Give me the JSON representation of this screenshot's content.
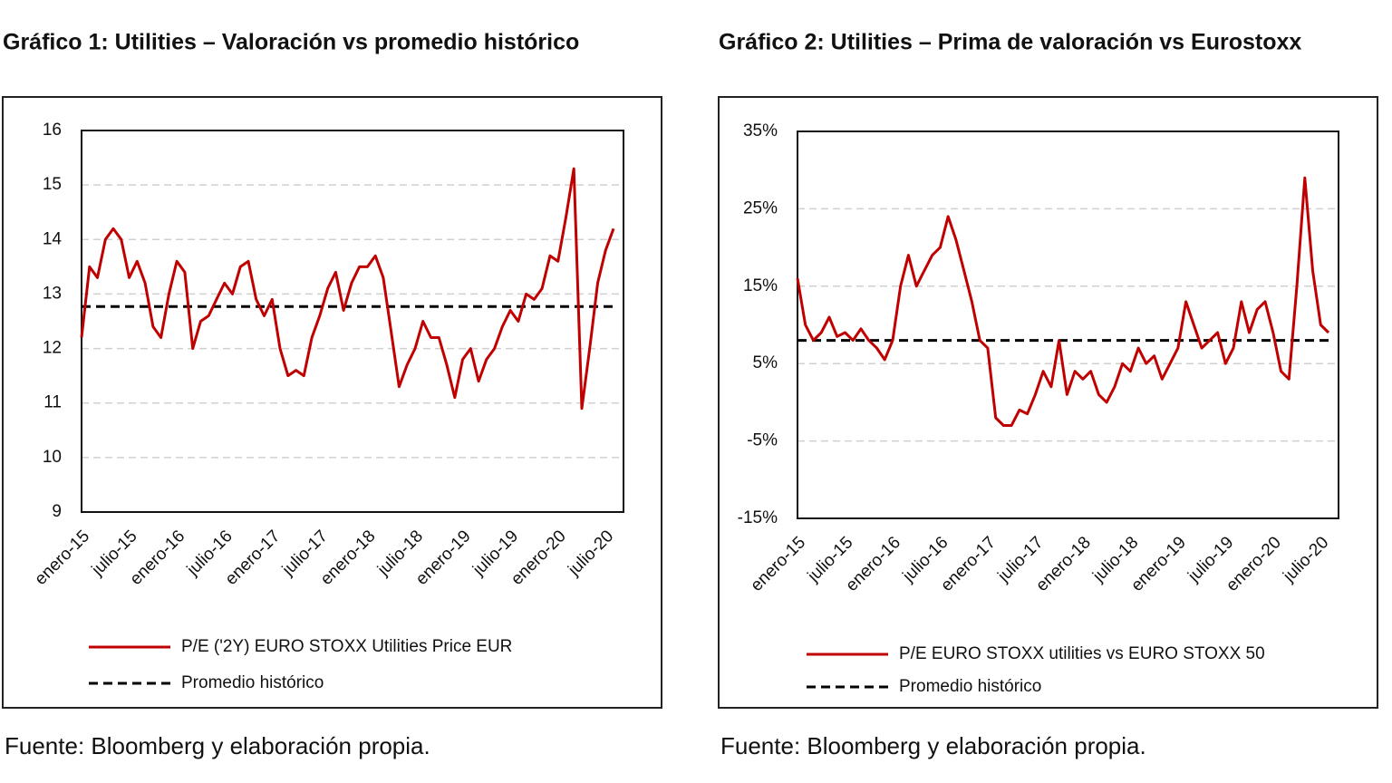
{
  "chart_data": [
    {
      "type": "line",
      "title": "Gráfico 1: Utilities – Valoración vs promedio histórico",
      "source": "Fuente: Bloomberg y elaboración propia.",
      "categories": [
        "enero-15",
        null,
        null,
        null,
        null,
        null,
        "julio-15",
        null,
        null,
        null,
        null,
        null,
        "enero-16",
        null,
        null,
        null,
        null,
        null,
        "julio-16",
        null,
        null,
        null,
        null,
        null,
        "enero-17",
        null,
        null,
        null,
        null,
        null,
        "julio-17",
        null,
        null,
        null,
        null,
        null,
        "enero-18",
        null,
        null,
        null,
        null,
        null,
        "julio-18",
        null,
        null,
        null,
        null,
        null,
        "enero-19",
        null,
        null,
        null,
        null,
        null,
        "julio-19",
        null,
        null,
        null,
        null,
        null,
        "enero-20",
        null,
        null,
        null,
        null,
        null,
        "julio-20",
        null
      ],
      "series": [
        {
          "name": "P/E ('2Y) EURO STOXX Utilities Price EUR",
          "color": "#c00000",
          "values": [
            12.2,
            13.5,
            13.3,
            14.0,
            14.2,
            14.0,
            13.3,
            13.6,
            13.2,
            12.4,
            12.2,
            13.0,
            13.6,
            13.4,
            12.0,
            12.5,
            12.6,
            12.9,
            13.2,
            13.0,
            13.5,
            13.6,
            12.9,
            12.6,
            12.9,
            12.0,
            11.5,
            11.6,
            11.5,
            12.2,
            12.6,
            13.1,
            13.4,
            12.7,
            13.2,
            13.5,
            13.5,
            13.7,
            13.3,
            12.3,
            11.3,
            11.7,
            12.0,
            12.5,
            12.2,
            12.2,
            11.7,
            11.1,
            11.8,
            12.0,
            11.4,
            11.8,
            12.0,
            12.4,
            12.7,
            12.5,
            13.0,
            12.9,
            13.1,
            13.7,
            13.6,
            14.4,
            15.3,
            10.9,
            12.0,
            13.2,
            13.8,
            14.2
          ]
        }
      ],
      "reference_line": {
        "name": "Promedio histórico",
        "value": 12.77,
        "color": "#000000"
      },
      "ylim": [
        9,
        16
      ],
      "yticks": [
        9,
        10,
        11,
        12,
        13,
        14,
        15,
        16
      ],
      "grid": true
    },
    {
      "type": "line",
      "title": "Gráfico 2: Utilities – Prima de valoración vs Eurostoxx",
      "source": "Fuente: Bloomberg y elaboración propia.",
      "categories": [
        "enero-15",
        null,
        null,
        null,
        null,
        null,
        "julio-15",
        null,
        null,
        null,
        null,
        null,
        "enero-16",
        null,
        null,
        null,
        null,
        null,
        "julio-16",
        null,
        null,
        null,
        null,
        null,
        "enero-17",
        null,
        null,
        null,
        null,
        null,
        "julio-17",
        null,
        null,
        null,
        null,
        null,
        "enero-18",
        null,
        null,
        null,
        null,
        null,
        "julio-18",
        null,
        null,
        null,
        null,
        null,
        "enero-19",
        null,
        null,
        null,
        null,
        null,
        "julio-19",
        null,
        null,
        null,
        null,
        null,
        "enero-20",
        null,
        null,
        null,
        null,
        null,
        "julio-20",
        null
      ],
      "series": [
        {
          "name": "P/E EURO STOXX utilities vs EURO STOXX 50",
          "color": "#c00000",
          "values": [
            16,
            10,
            8,
            9,
            11,
            8.5,
            9,
            8,
            9.5,
            8,
            7,
            5.5,
            8,
            15,
            19,
            15,
            17,
            19,
            20,
            24,
            21,
            17,
            13,
            8,
            7,
            -2,
            -3,
            -3,
            -1,
            -1.5,
            1,
            4,
            2,
            8,
            1,
            4,
            3,
            4,
            1,
            0,
            2,
            5,
            4,
            7,
            5,
            6,
            3,
            5,
            7,
            13,
            10,
            7,
            8,
            9,
            5,
            7,
            13,
            9,
            12,
            13,
            9,
            4,
            3,
            15,
            29,
            17,
            10,
            9
          ]
        }
      ],
      "reference_line": {
        "name": "Promedio histórico",
        "value": 8,
        "color": "#000000"
      },
      "ylim": [
        -15,
        35
      ],
      "yticks": [
        {
          "value": -15,
          "label": "-15%"
        },
        {
          "value": -5,
          "label": "-5%"
        },
        {
          "value": 5,
          "label": "5%"
        },
        {
          "value": 15,
          "label": "15%"
        },
        {
          "value": 25,
          "label": "25%"
        },
        {
          "value": 35,
          "label": "35%"
        }
      ],
      "grid": true
    }
  ]
}
